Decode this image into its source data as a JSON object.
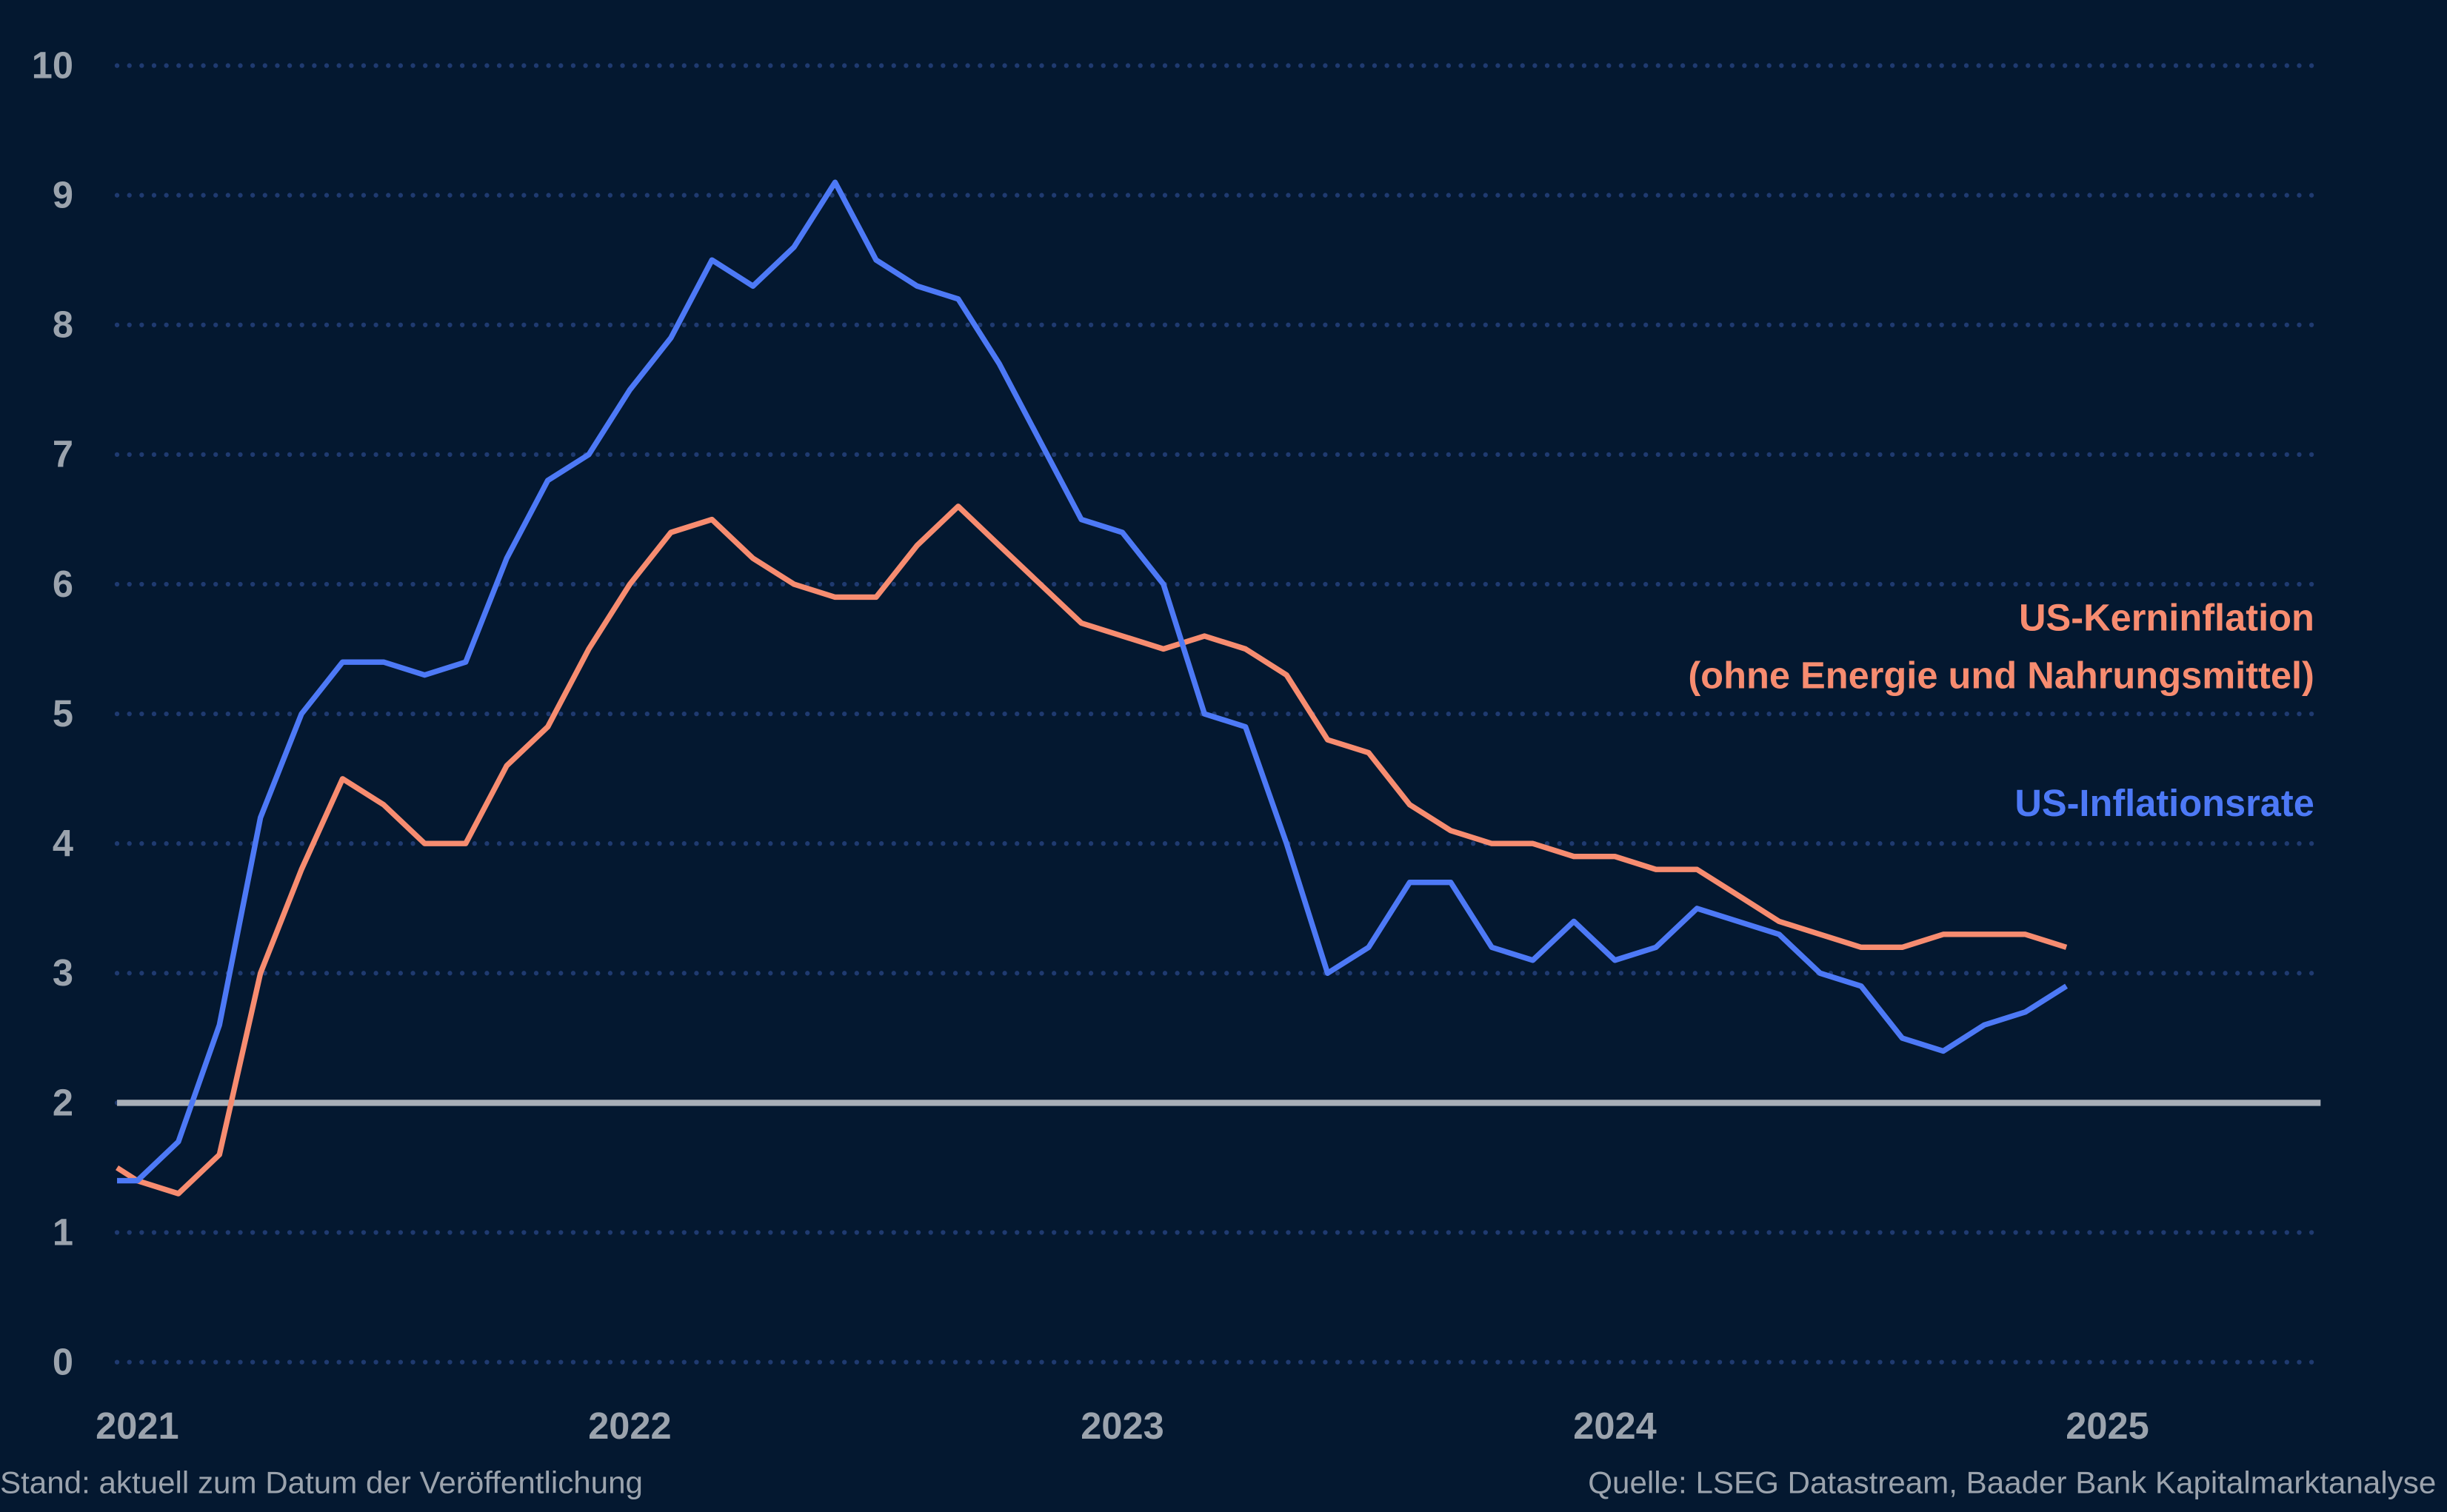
{
  "chart_data": {
    "type": "line",
    "title": "",
    "xlabel": "",
    "ylabel": "",
    "ylim": [
      0,
      10
    ],
    "xlim": [
      "2020-12-16",
      "2025-06-05"
    ],
    "yticks": [
      "0",
      "1",
      "2",
      "3",
      "4",
      "5",
      "6",
      "7",
      "8",
      "9",
      "10"
    ],
    "xticks": [
      {
        "label": "2021",
        "date": "2021-01"
      },
      {
        "label": "2022",
        "date": "2022-01"
      },
      {
        "label": "2023",
        "date": "2023-01"
      },
      {
        "label": "2024",
        "date": "2024-01"
      },
      {
        "label": "2025",
        "date": "2025-01"
      }
    ],
    "grid": "horizontal dotted",
    "reference_line": {
      "y": 2,
      "color": "#a9afb8"
    },
    "x": [
      "2021-01",
      "2021-02",
      "2021-03",
      "2021-04",
      "2021-05",
      "2021-06",
      "2021-07",
      "2021-08",
      "2021-09",
      "2021-10",
      "2021-11",
      "2021-12",
      "2022-01",
      "2022-02",
      "2022-03",
      "2022-04",
      "2022-05",
      "2022-06",
      "2022-07",
      "2022-08",
      "2022-09",
      "2022-10",
      "2022-11",
      "2022-12",
      "2023-01",
      "2023-02",
      "2023-03",
      "2023-04",
      "2023-05",
      "2023-06",
      "2023-07",
      "2023-08",
      "2023-09",
      "2023-10",
      "2023-11",
      "2023-12",
      "2024-01",
      "2024-02",
      "2024-03",
      "2024-04",
      "2024-05",
      "2024-06",
      "2024-07",
      "2024-08",
      "2024-09",
      "2024-10",
      "2024-11",
      "2024-12"
    ],
    "series": [
      {
        "name": "US-Inflationsrate",
        "color": "#4d79f6",
        "values": [
          1.4,
          1.7,
          2.6,
          4.2,
          5.0,
          5.4,
          5.4,
          5.3,
          5.4,
          6.2,
          6.8,
          7.0,
          7.5,
          7.9,
          8.5,
          8.3,
          8.6,
          9.1,
          8.5,
          8.3,
          8.2,
          7.7,
          7.1,
          6.5,
          6.4,
          6.0,
          5.0,
          4.9,
          4.0,
          3.0,
          3.2,
          3.7,
          3.7,
          3.2,
          3.1,
          3.4,
          3.1,
          3.2,
          3.5,
          3.4,
          3.3,
          3.0,
          2.9,
          2.5,
          2.4,
          2.6,
          2.7,
          2.9
        ]
      },
      {
        "name": "US-Kerninflation",
        "name_line2": "(ohne Energie und Nahrungsmittel)",
        "color": "#f78c70",
        "values": [
          1.4,
          1.3,
          1.6,
          3.0,
          3.8,
          4.5,
          4.3,
          4.0,
          4.0,
          4.6,
          4.9,
          5.5,
          6.0,
          6.4,
          6.5,
          6.2,
          6.0,
          5.9,
          5.9,
          6.3,
          6.6,
          6.3,
          6.0,
          5.7,
          5.6,
          5.5,
          5.6,
          5.5,
          5.3,
          4.8,
          4.7,
          4.3,
          4.1,
          4.0,
          4.0,
          3.9,
          3.9,
          3.8,
          3.8,
          3.6,
          3.4,
          3.3,
          3.2,
          3.2,
          3.3,
          3.3,
          3.3,
          3.2
        ]
      }
    ],
    "legend": "right, inline labels",
    "colors": {
      "background": "#041830",
      "grid": "#1f3a70",
      "text": "#9ba3ad"
    }
  },
  "footer": {
    "left": "Stand: aktuell zum Datum der Veröffentlichung",
    "right": "Quelle: LSEG Datastream, Baader Bank Kapitalmarktanalyse"
  }
}
